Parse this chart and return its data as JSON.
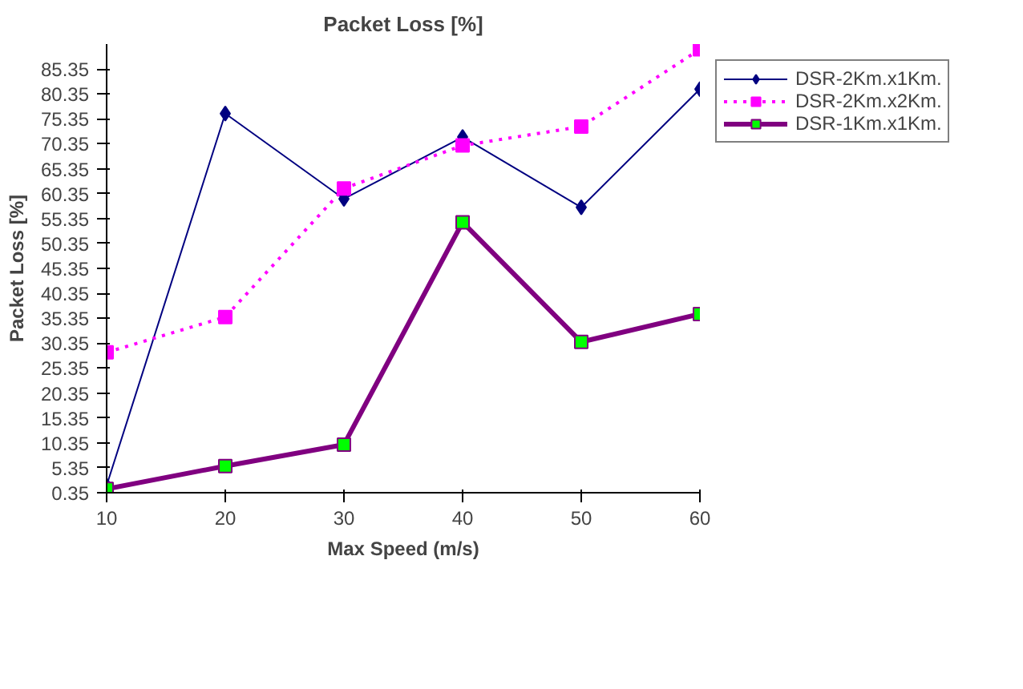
{
  "chart_data": {
    "type": "line",
    "title": "Packet Loss [%]",
    "xlabel": "Max Speed (m/s)",
    "ylabel": "Packet Loss [%]",
    "x": [
      10,
      20,
      30,
      40,
      50,
      60
    ],
    "series": [
      {
        "name": "DSR-2Km.x1Km.",
        "color": "#000080",
        "marker": "diamond",
        "line_style": "solid",
        "values": [
          1.8,
          76.4,
          59.3,
          71.7,
          57.6,
          81.3
        ]
      },
      {
        "name": "DSR-2Km.x2Km.",
        "color": "#ff00ff",
        "marker": "square",
        "line_style": "dotted",
        "values": [
          28.5,
          35.6,
          61.4,
          70.0,
          73.8,
          89.3
        ]
      },
      {
        "name": "DSR-1Km.x1Km.",
        "color": "#800080",
        "marker": "square",
        "line_style": "solid",
        "values": [
          1.1,
          5.7,
          10.0,
          54.6,
          30.6,
          36.2
        ]
      }
    ],
    "xlim": [
      10,
      60
    ],
    "xticks": [
      10,
      20,
      30,
      40,
      50,
      60
    ],
    "ylim": [
      0.35,
      90.35
    ],
    "yticks": [
      0.35,
      5.35,
      10.35,
      15.35,
      20.35,
      25.35,
      30.35,
      35.35,
      40.35,
      45.35,
      50.35,
      55.35,
      60.35,
      65.35,
      70.35,
      75.35,
      80.35,
      85.35
    ],
    "grid": false,
    "legend": "top right"
  }
}
